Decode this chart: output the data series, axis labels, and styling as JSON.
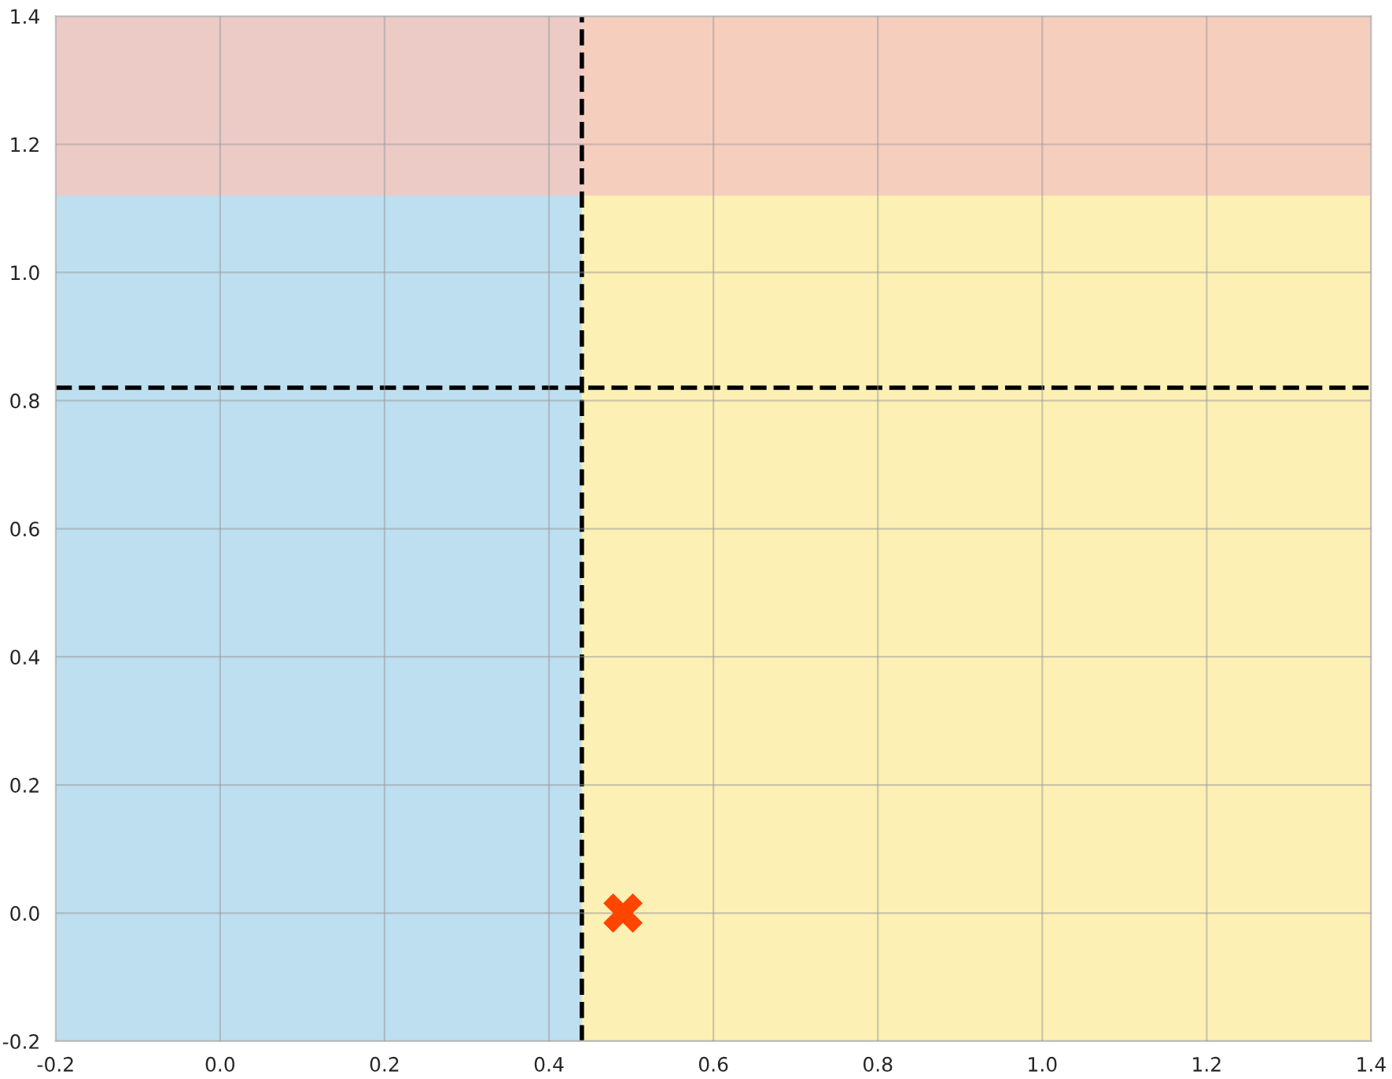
{
  "chart_data": {
    "type": "scatter",
    "series": [
      {
        "color": "#ff4500",
        "x": [
          0.49
        ],
        "values": [
          0
        ]
      }
    ],
    "marker": "cross",
    "xlim": [
      -0.2,
      1.4
    ],
    "ylim": [
      -0.2,
      1.4
    ],
    "xticks": [
      -0.2,
      {
        "value": 0,
        "label": "0.0"
      },
      0.2,
      0.4,
      0.6,
      0.8,
      {
        "value": 1,
        "label": "1.0"
      },
      1.2,
      1.4
    ],
    "yticks": [
      -0.2,
      {
        "value": 0,
        "label": "0.0"
      },
      0.2,
      0.4,
      0.6,
      0.8,
      {
        "value": 1,
        "label": "1.0"
      },
      1.2,
      1.4
    ],
    "grid": true,
    "bands": [
      {
        "axis": "x",
        "from": -0.2,
        "to": 0.44,
        "color": "#bddff0"
      },
      {
        "axis": "x",
        "from": 0.44,
        "to": 1.4,
        "color": "#fdf0b4"
      },
      {
        "axis": "y",
        "from": 1.12,
        "to": 1.4,
        "color": "#f5c8c0"
      }
    ],
    "ref_lines": [
      {
        "axis": "x",
        "value": 0.44,
        "line_style": "dashed",
        "color": "#000000"
      },
      {
        "axis": "y",
        "value": 0.82,
        "line_style": "dashed",
        "color": "#000000"
      }
    ]
  }
}
